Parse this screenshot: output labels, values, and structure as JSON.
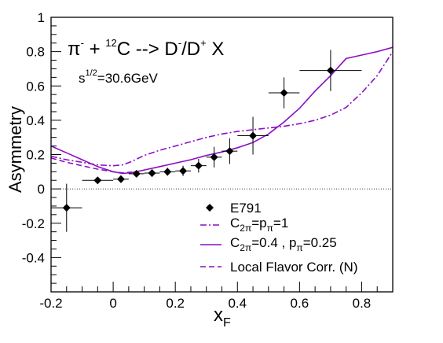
{
  "chart_data": {
    "type": "scatter",
    "xlabel": "x",
    "xlabel_sub": "F",
    "ylabel": "Asymmetry",
    "xlim": [
      -0.2,
      0.9
    ],
    "ylim": [
      -0.6,
      1.0
    ],
    "xticks": [
      {
        "v": -0.2,
        "label": "-0.2"
      },
      {
        "v": 0.0,
        "label": "0"
      },
      {
        "v": 0.2,
        "label": "0.2"
      },
      {
        "v": 0.4,
        "label": "0.4"
      },
      {
        "v": 0.6,
        "label": "0.6"
      },
      {
        "v": 0.8,
        "label": "0.8"
      }
    ],
    "yticks": [
      {
        "v": -0.4,
        "label": "-0.4"
      },
      {
        "v": -0.2,
        "label": "-0.2"
      },
      {
        "v": 0.0,
        "label": "0"
      },
      {
        "v": 0.2,
        "label": "0.2"
      },
      {
        "v": 0.4,
        "label": "0.4"
      },
      {
        "v": 0.6,
        "label": "0.6"
      },
      {
        "v": 0.8,
        "label": "0.8"
      },
      {
        "v": 1.0,
        "label": "1"
      }
    ],
    "zero_line": true,
    "annotations": {
      "reaction": {
        "pi": "π",
        "sup1": "-",
        "plus": " + ",
        "sup12": "12",
        "c": "C --> D",
        "sup2": "-",
        "slash": "/D",
        "sup3": "+",
        "x": " X"
      },
      "energy": {
        "s": "s",
        "sup": "1/2",
        "rest": "=30.6GeV"
      }
    },
    "series": [
      {
        "name": "E791",
        "kind": "points",
        "color": "#000000",
        "points": [
          {
            "x": -0.15,
            "y": -0.11,
            "xerr": 0.05,
            "yerr": 0.14
          },
          {
            "x": -0.05,
            "y": 0.05,
            "xerr": 0.05,
            "yerr": 0.012
          },
          {
            "x": 0.025,
            "y": 0.057,
            "xerr": 0.025,
            "yerr": 0.013
          },
          {
            "x": 0.075,
            "y": 0.088,
            "xerr": 0.025,
            "yerr": 0.016
          },
          {
            "x": 0.125,
            "y": 0.092,
            "xerr": 0.025,
            "yerr": 0.022
          },
          {
            "x": 0.175,
            "y": 0.1,
            "xerr": 0.025,
            "yerr": 0.023
          },
          {
            "x": 0.225,
            "y": 0.105,
            "xerr": 0.025,
            "yerr": 0.03
          },
          {
            "x": 0.275,
            "y": 0.135,
            "xerr": 0.025,
            "yerr": 0.04
          },
          {
            "x": 0.325,
            "y": 0.185,
            "xerr": 0.025,
            "yerr": 0.06
          },
          {
            "x": 0.375,
            "y": 0.22,
            "xerr": 0.025,
            "yerr": 0.075
          },
          {
            "x": 0.45,
            "y": 0.31,
            "xerr": 0.05,
            "yerr": 0.11
          },
          {
            "x": 0.55,
            "y": 0.56,
            "xerr": 0.05,
            "yerr": 0.09
          },
          {
            "x": 0.7,
            "y": 0.69,
            "xerr": 0.1,
            "yerr": 0.12
          }
        ]
      },
      {
        "name": "C=p=1",
        "legend": {
          "a": "C",
          "asub": "2π",
          "b": "=p",
          "bsub": "π",
          "c": "=1"
        },
        "kind": "line",
        "style": "dashdot",
        "color": "#8a0ec4",
        "points": [
          [
            -0.2,
            0.19
          ],
          [
            -0.15,
            0.17
          ],
          [
            -0.1,
            0.155
          ],
          [
            -0.05,
            0.14
          ],
          [
            0.0,
            0.135
          ],
          [
            0.03,
            0.14
          ],
          [
            0.06,
            0.16
          ],
          [
            0.1,
            0.195
          ],
          [
            0.15,
            0.225
          ],
          [
            0.2,
            0.25
          ],
          [
            0.25,
            0.275
          ],
          [
            0.3,
            0.3
          ],
          [
            0.35,
            0.32
          ],
          [
            0.4,
            0.335
          ],
          [
            0.45,
            0.345
          ],
          [
            0.5,
            0.355
          ],
          [
            0.55,
            0.365
          ],
          [
            0.6,
            0.38
          ],
          [
            0.65,
            0.4
          ],
          [
            0.7,
            0.43
          ],
          [
            0.75,
            0.475
          ],
          [
            0.8,
            0.56
          ],
          [
            0.85,
            0.66
          ],
          [
            0.9,
            0.8
          ]
        ]
      },
      {
        "name": "C=0.4 , p=0.25",
        "legend": {
          "a": "C",
          "asub": "2π",
          "b": "=0.4 , p",
          "bsub": "π",
          "c": "=0.25"
        },
        "kind": "line",
        "style": "solid",
        "color": "#8a0ec4",
        "points": [
          [
            -0.2,
            0.25
          ],
          [
            -0.15,
            0.21
          ],
          [
            -0.1,
            0.17
          ],
          [
            -0.05,
            0.13
          ],
          [
            0.0,
            0.1
          ],
          [
            0.03,
            0.09
          ],
          [
            0.06,
            0.095
          ],
          [
            0.1,
            0.11
          ],
          [
            0.15,
            0.13
          ],
          [
            0.2,
            0.15
          ],
          [
            0.25,
            0.17
          ],
          [
            0.3,
            0.195
          ],
          [
            0.35,
            0.215
          ],
          [
            0.4,
            0.24
          ],
          [
            0.45,
            0.27
          ],
          [
            0.5,
            0.32
          ],
          [
            0.55,
            0.39
          ],
          [
            0.6,
            0.47
          ],
          [
            0.65,
            0.57
          ],
          [
            0.7,
            0.66
          ],
          [
            0.73,
            0.72
          ],
          [
            0.75,
            0.76
          ],
          [
            0.8,
            0.78
          ],
          [
            0.85,
            0.8
          ],
          [
            0.9,
            0.825
          ]
        ]
      },
      {
        "name": "Local Flavor Corr. (N)",
        "legend": {
          "a": "Local Flavor Corr. (N)"
        },
        "kind": "line",
        "style": "dashed",
        "color": "#8a0ec4",
        "points": [
          [
            -0.2,
            0.18
          ],
          [
            -0.15,
            0.155
          ],
          [
            -0.1,
            0.135
          ],
          [
            -0.05,
            0.115
          ],
          [
            0.0,
            0.1
          ],
          [
            0.03,
            0.093
          ],
          [
            0.06,
            0.098
          ]
        ]
      }
    ]
  }
}
